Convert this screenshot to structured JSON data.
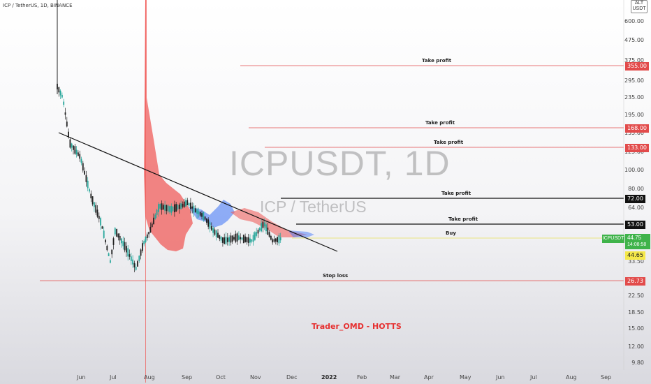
{
  "header": {
    "title": "ICP / TetherUS, 1D, BINANCE"
  },
  "currency_button": {
    "line1": "ALT",
    "line2": "USDT"
  },
  "watermark": {
    "symbol": "ICPUSDT, 1D",
    "description": "ICP / TetherUS"
  },
  "author": "Trader_OMD - HOTTS",
  "symbol_label": "ICPUSDT",
  "last_price": {
    "value": "44.75",
    "countdown": "14:08:58"
  },
  "yellow_price": "44.65",
  "y_axis_ticks": [
    "600.00",
    "475.00",
    "375.00",
    "295.00",
    "235.00",
    "195.00",
    "155.00",
    "125.00",
    "100.00",
    "80.00",
    "64.00",
    "53.00",
    "42.00",
    "33.50",
    "26.50",
    "22.50",
    "18.50",
    "15.00",
    "12.00",
    "9.80"
  ],
  "x_axis_ticks": [
    {
      "label": "Jun",
      "bold": false
    },
    {
      "label": "Jul",
      "bold": false
    },
    {
      "label": "Aug",
      "bold": false
    },
    {
      "label": "Sep",
      "bold": false
    },
    {
      "label": "Oct",
      "bold": false
    },
    {
      "label": "Nov",
      "bold": false
    },
    {
      "label": "Dec",
      "bold": false
    },
    {
      "label": "2022",
      "bold": true
    },
    {
      "label": "Feb",
      "bold": false
    },
    {
      "label": "Mar",
      "bold": false
    },
    {
      "label": "Apr",
      "bold": false
    },
    {
      "label": "May",
      "bold": false
    },
    {
      "label": "Jun",
      "bold": false
    },
    {
      "label": "Jul",
      "bold": false
    },
    {
      "label": "Aug",
      "bold": false
    },
    {
      "label": "Sep",
      "bold": false
    }
  ],
  "levels": [
    {
      "label": "Take profit",
      "price": "355.00",
      "color": "#e24b4b",
      "style": "red"
    },
    {
      "label": "Take profit",
      "price": "168.00",
      "color": "#e24b4b",
      "style": "red"
    },
    {
      "label": "Take profit",
      "price": "133.00",
      "color": "#e24b4b",
      "style": "red"
    },
    {
      "label": "Take profit",
      "price": "72.00",
      "color": "#111111",
      "style": "black"
    },
    {
      "label": "Take profit",
      "price": "53.00",
      "color": "#111111",
      "style": "black"
    },
    {
      "label": "Buy",
      "price": "",
      "color": "#e8e05a",
      "style": "none"
    },
    {
      "label": "Stop loss",
      "price": "26.73",
      "color": "#e24b4b",
      "style": "red"
    }
  ],
  "colors": {
    "up": "#26a69a",
    "down": "#222222",
    "cloud_bear": "#ef5350",
    "cloud_bull": "#4a7cf7",
    "trendline": "#111111"
  }
}
